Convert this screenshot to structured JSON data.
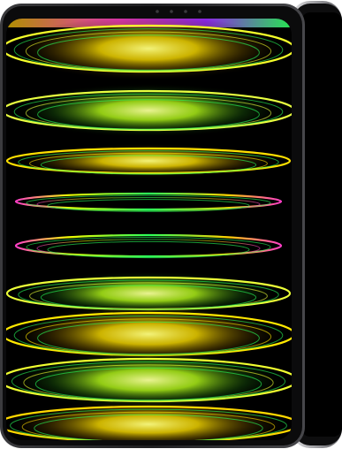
{
  "device": {
    "front": {
      "frame_color": "#2a2a2c",
      "screen_color": "#000000",
      "camera_dots": 4
    },
    "back": {
      "frame_color": "#1a1a1b",
      "edge_color": "#c9c9cc"
    },
    "wallpaper": {
      "colors": [
        "#f0ff00",
        "#ffe000",
        "#28ff5a",
        "#ff3cc8",
        "#9b2cff"
      ],
      "bands": [
        {
          "kind": "dome",
          "tone": "yellow"
        },
        {
          "kind": "dome",
          "tone": "green"
        },
        {
          "kind": "ring",
          "tone": "yellow"
        },
        {
          "kind": "ring",
          "tone": "pink"
        },
        {
          "kind": "dome",
          "tone": "yellow"
        },
        {
          "kind": "dome",
          "tone": "green"
        },
        {
          "kind": "dome",
          "tone": "yellow"
        }
      ]
    }
  }
}
